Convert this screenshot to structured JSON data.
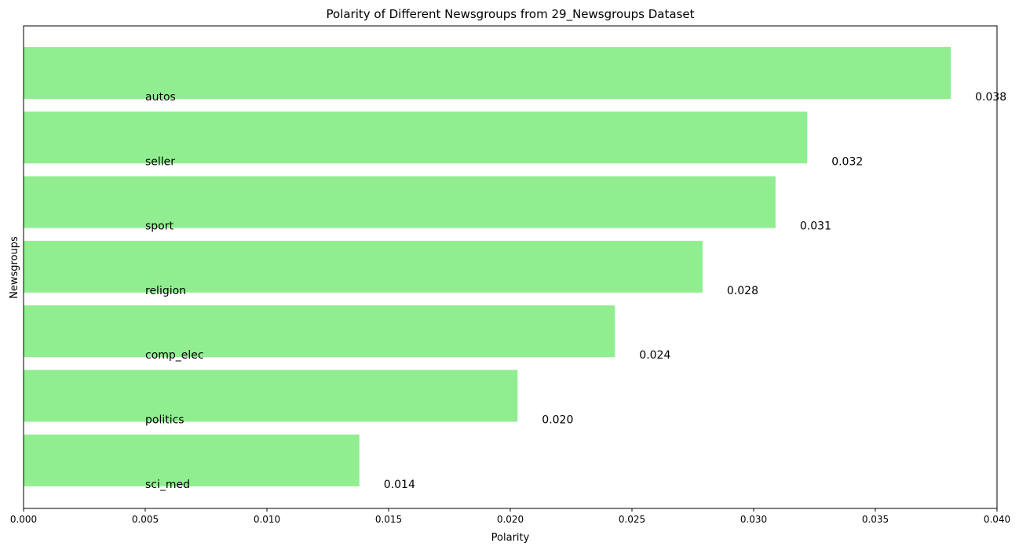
{
  "chart_data": {
    "type": "bar",
    "orientation": "horizontal",
    "title": "Polarity of Different Newsgroups from 29_Newsgroups Dataset",
    "xlabel": "Polarity",
    "ylabel": "Newsgroups",
    "xlim": [
      0,
      0.04
    ],
    "xticks": [
      "0.000",
      "0.005",
      "0.010",
      "0.015",
      "0.020",
      "0.025",
      "0.030",
      "0.035",
      "0.040"
    ],
    "categories": [
      "autos",
      "seller",
      "sport",
      "religion",
      "comp_elec",
      "politics",
      "sci_med"
    ],
    "values": [
      0.0381,
      0.0322,
      0.0309,
      0.0279,
      0.0243,
      0.0203,
      0.0138
    ],
    "value_labels": [
      "0.038",
      "0.032",
      "0.031",
      "0.028",
      "0.024",
      "0.020",
      "0.014"
    ],
    "bar_color": "#90ee90",
    "grid": false,
    "legend": "none"
  }
}
